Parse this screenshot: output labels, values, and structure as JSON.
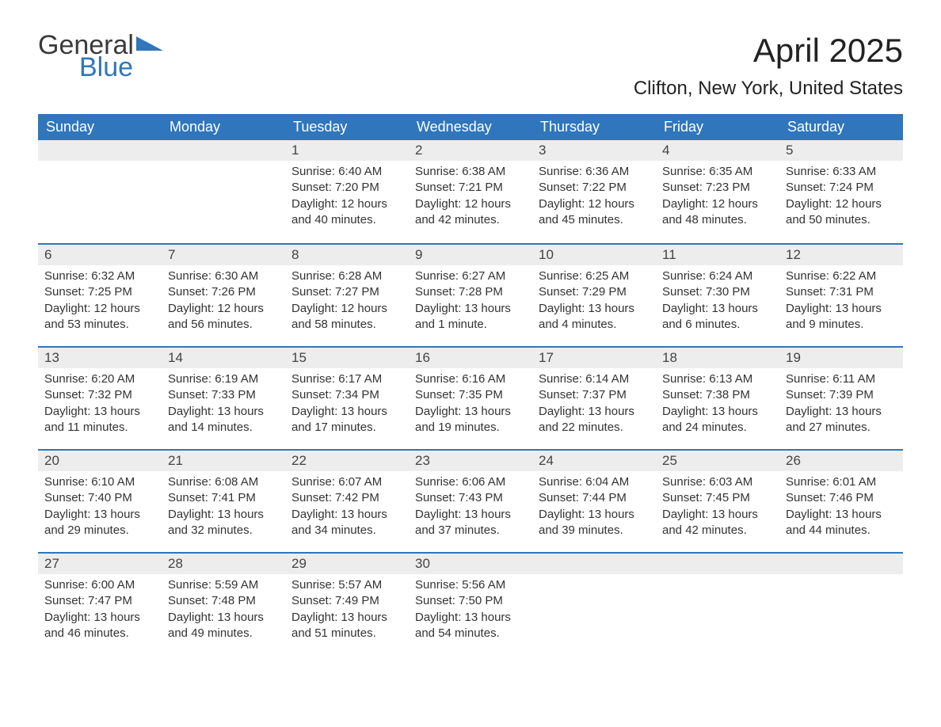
{
  "logo": {
    "text1": "General",
    "text2": "Blue"
  },
  "title": "April 2025",
  "location": "Clifton, New York, United States",
  "colors": {
    "header_bg": "#2f76bc",
    "header_fg": "#ffffff",
    "daynum_bg": "#ededed",
    "border_top": "#2f76bc",
    "text": "#333333",
    "logo_blue": "#2f76bc"
  },
  "weekdays": [
    "Sunday",
    "Monday",
    "Tuesday",
    "Wednesday",
    "Thursday",
    "Friday",
    "Saturday"
  ],
  "weeks": [
    [
      null,
      null,
      {
        "n": "1",
        "sunrise": "6:40 AM",
        "sunset": "7:20 PM",
        "daylight": "12 hours and 40 minutes."
      },
      {
        "n": "2",
        "sunrise": "6:38 AM",
        "sunset": "7:21 PM",
        "daylight": "12 hours and 42 minutes."
      },
      {
        "n": "3",
        "sunrise": "6:36 AM",
        "sunset": "7:22 PM",
        "daylight": "12 hours and 45 minutes."
      },
      {
        "n": "4",
        "sunrise": "6:35 AM",
        "sunset": "7:23 PM",
        "daylight": "12 hours and 48 minutes."
      },
      {
        "n": "5",
        "sunrise": "6:33 AM",
        "sunset": "7:24 PM",
        "daylight": "12 hours and 50 minutes."
      }
    ],
    [
      {
        "n": "6",
        "sunrise": "6:32 AM",
        "sunset": "7:25 PM",
        "daylight": "12 hours and 53 minutes."
      },
      {
        "n": "7",
        "sunrise": "6:30 AM",
        "sunset": "7:26 PM",
        "daylight": "12 hours and 56 minutes."
      },
      {
        "n": "8",
        "sunrise": "6:28 AM",
        "sunset": "7:27 PM",
        "daylight": "12 hours and 58 minutes."
      },
      {
        "n": "9",
        "sunrise": "6:27 AM",
        "sunset": "7:28 PM",
        "daylight": "13 hours and 1 minute."
      },
      {
        "n": "10",
        "sunrise": "6:25 AM",
        "sunset": "7:29 PM",
        "daylight": "13 hours and 4 minutes."
      },
      {
        "n": "11",
        "sunrise": "6:24 AM",
        "sunset": "7:30 PM",
        "daylight": "13 hours and 6 minutes."
      },
      {
        "n": "12",
        "sunrise": "6:22 AM",
        "sunset": "7:31 PM",
        "daylight": "13 hours and 9 minutes."
      }
    ],
    [
      {
        "n": "13",
        "sunrise": "6:20 AM",
        "sunset": "7:32 PM",
        "daylight": "13 hours and 11 minutes."
      },
      {
        "n": "14",
        "sunrise": "6:19 AM",
        "sunset": "7:33 PM",
        "daylight": "13 hours and 14 minutes."
      },
      {
        "n": "15",
        "sunrise": "6:17 AM",
        "sunset": "7:34 PM",
        "daylight": "13 hours and 17 minutes."
      },
      {
        "n": "16",
        "sunrise": "6:16 AM",
        "sunset": "7:35 PM",
        "daylight": "13 hours and 19 minutes."
      },
      {
        "n": "17",
        "sunrise": "6:14 AM",
        "sunset": "7:37 PM",
        "daylight": "13 hours and 22 minutes."
      },
      {
        "n": "18",
        "sunrise": "6:13 AM",
        "sunset": "7:38 PM",
        "daylight": "13 hours and 24 minutes."
      },
      {
        "n": "19",
        "sunrise": "6:11 AM",
        "sunset": "7:39 PM",
        "daylight": "13 hours and 27 minutes."
      }
    ],
    [
      {
        "n": "20",
        "sunrise": "6:10 AM",
        "sunset": "7:40 PM",
        "daylight": "13 hours and 29 minutes."
      },
      {
        "n": "21",
        "sunrise": "6:08 AM",
        "sunset": "7:41 PM",
        "daylight": "13 hours and 32 minutes."
      },
      {
        "n": "22",
        "sunrise": "6:07 AM",
        "sunset": "7:42 PM",
        "daylight": "13 hours and 34 minutes."
      },
      {
        "n": "23",
        "sunrise": "6:06 AM",
        "sunset": "7:43 PM",
        "daylight": "13 hours and 37 minutes."
      },
      {
        "n": "24",
        "sunrise": "6:04 AM",
        "sunset": "7:44 PM",
        "daylight": "13 hours and 39 minutes."
      },
      {
        "n": "25",
        "sunrise": "6:03 AM",
        "sunset": "7:45 PM",
        "daylight": "13 hours and 42 minutes."
      },
      {
        "n": "26",
        "sunrise": "6:01 AM",
        "sunset": "7:46 PM",
        "daylight": "13 hours and 44 minutes."
      }
    ],
    [
      {
        "n": "27",
        "sunrise": "6:00 AM",
        "sunset": "7:47 PM",
        "daylight": "13 hours and 46 minutes."
      },
      {
        "n": "28",
        "sunrise": "5:59 AM",
        "sunset": "7:48 PM",
        "daylight": "13 hours and 49 minutes."
      },
      {
        "n": "29",
        "sunrise": "5:57 AM",
        "sunset": "7:49 PM",
        "daylight": "13 hours and 51 minutes."
      },
      {
        "n": "30",
        "sunrise": "5:56 AM",
        "sunset": "7:50 PM",
        "daylight": "13 hours and 54 minutes."
      },
      null,
      null,
      null
    ]
  ],
  "labels": {
    "sunrise": "Sunrise: ",
    "sunset": "Sunset: ",
    "daylight": "Daylight: "
  }
}
